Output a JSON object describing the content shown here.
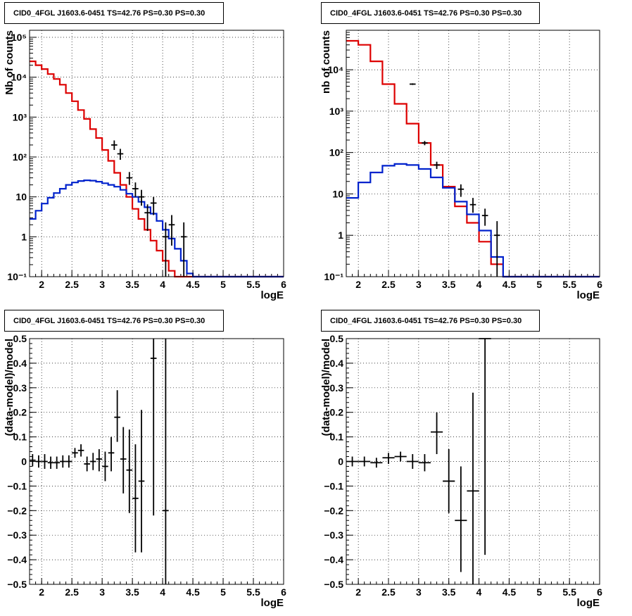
{
  "chart_data": [
    {
      "type": "line",
      "panel": "top-left",
      "title": "CID0_4FGL J1603.6-0451 TS=42.76 PS=0.30 PS=0.30",
      "xlabel": "logE",
      "ylabel": "Nb of counts",
      "xlim": [
        1.8,
        6.0
      ],
      "ylim": [
        0.1,
        150000
      ],
      "yscale": "log",
      "xticks": [
        "2",
        "2.5",
        "3",
        "3.5",
        "4",
        "4.5",
        "5",
        "5.5",
        "6"
      ],
      "yticks": [
        {
          "v": 0.1,
          "t": "10⁻¹"
        },
        {
          "v": 1,
          "t": "1"
        },
        {
          "v": 10,
          "t": "10"
        },
        {
          "v": 100,
          "t": "10²"
        },
        {
          "v": 1000,
          "t": "10³"
        },
        {
          "v": 10000,
          "t": "10⁴"
        },
        {
          "v": 100000,
          "t": "10⁵"
        }
      ],
      "grid": true,
      "bin_edges": [
        1.8,
        1.9,
        2.0,
        2.1,
        2.2,
        2.3,
        2.4,
        2.5,
        2.6,
        2.7,
        2.8,
        2.9,
        3.0,
        3.1,
        3.2,
        3.3,
        3.4,
        3.5,
        3.6,
        3.7,
        3.8,
        3.9,
        4.0,
        4.1,
        4.2,
        4.3,
        4.4,
        4.5,
        4.6,
        4.7,
        4.8,
        4.9,
        5.0,
        5.1,
        5.2,
        5.3,
        5.4,
        5.5,
        5.6,
        5.7,
        5.8,
        5.9,
        6.0
      ],
      "series": [
        {
          "color": "#dd0000",
          "values": [
            25000,
            20000,
            16000,
            12000,
            9000,
            6500,
            4000,
            2500,
            1500,
            900,
            500,
            300,
            150,
            80,
            40,
            20,
            10,
            5,
            2.8,
            1.5,
            0.8,
            0.45,
            0.25,
            0.14,
            0.1,
            0.1,
            0.1,
            0.1,
            0.1,
            0.1,
            0.1,
            0.1,
            0.1,
            0.1,
            0.1,
            0.1,
            0.1,
            0.1,
            0.1,
            0.1,
            0.1,
            0.1
          ]
        },
        {
          "color": "#0022cc",
          "values": [
            2.8,
            4.5,
            6.8,
            9.5,
            12.5,
            16,
            20,
            23,
            25,
            26,
            25.5,
            24,
            22,
            20,
            18,
            15,
            12,
            10,
            7.5,
            5.5,
            3.8,
            2.5,
            1.5,
            0.9,
            0.5,
            0.25,
            0.12,
            0.1,
            0.1,
            0.1,
            0.1,
            0.1,
            0.1,
            0.1,
            0.1,
            0.1,
            0.1,
            0.1,
            0.1,
            0.1,
            0.1,
            0.1
          ]
        }
      ],
      "points": [
        {
          "x": 3.2,
          "y": 200,
          "ylo": 150,
          "yhi": 260
        },
        {
          "x": 3.3,
          "y": 120,
          "ylo": 85,
          "yhi": 160
        },
        {
          "x": 3.45,
          "y": 30,
          "ylo": 20,
          "yhi": 42
        },
        {
          "x": 3.55,
          "y": 16,
          "ylo": 10,
          "yhi": 23
        },
        {
          "x": 3.65,
          "y": 10,
          "ylo": 6,
          "yhi": 15
        },
        {
          "x": 3.75,
          "y": 4,
          "ylo": 1.4,
          "yhi": 6.5
        },
        {
          "x": 3.85,
          "y": 7,
          "ylo": 3.5,
          "yhi": 10
        },
        {
          "x": 4.05,
          "y": 1,
          "ylo": 0.1,
          "yhi": 2.3
        },
        {
          "x": 4.15,
          "y": 2,
          "ylo": 0.6,
          "yhi": 3.5
        },
        {
          "x": 4.35,
          "y": 1,
          "ylo": 0.1,
          "yhi": 2.3
        }
      ]
    },
    {
      "type": "line",
      "panel": "top-right",
      "title": "CID0_4FGL J1603.6-0451 TS=42.76 PS=0.30 PS=0.30",
      "xlabel": "logE",
      "ylabel": "nb of counts",
      "xlim": [
        1.8,
        6.0
      ],
      "ylim": [
        0.1,
        90000
      ],
      "yscale": "log",
      "xticks": [
        "2",
        "2.5",
        "3",
        "3.5",
        "4",
        "4.5",
        "5",
        "5.5",
        "6"
      ],
      "yticks": [
        {
          "v": 0.1,
          "t": "10⁻¹"
        },
        {
          "v": 1,
          "t": "1"
        },
        {
          "v": 10,
          "t": "10"
        },
        {
          "v": 100,
          "t": "10²"
        },
        {
          "v": 1000,
          "t": "10³"
        },
        {
          "v": 10000,
          "t": "10⁴"
        }
      ],
      "grid": true,
      "bin_edges": [
        1.8,
        2.0,
        2.2,
        2.4,
        2.6,
        2.8,
        3.0,
        3.2,
        3.4,
        3.6,
        3.8,
        4.0,
        4.2,
        4.4,
        4.6,
        4.8,
        5.0,
        5.2,
        5.4,
        5.6,
        5.8,
        6.0
      ],
      "series": [
        {
          "color": "#dd0000",
          "values": [
            50000,
            40000,
            16000,
            4500,
            1500,
            500,
            170,
            50,
            15,
            5,
            2,
            0.7,
            0.2,
            0.1,
            0.1,
            0.1,
            0.1,
            0.1,
            0.1,
            0.1,
            0.1
          ]
        },
        {
          "color": "#0022cc",
          "values": [
            8,
            19,
            33,
            48,
            53,
            50,
            40,
            25,
            14,
            6.5,
            3.2,
            1.3,
            0.3,
            0.1,
            0.1,
            0.1,
            0.1,
            0.1,
            0.1,
            0.1,
            0.1
          ]
        }
      ],
      "points": [
        {
          "x": 2.9,
          "y": 4500,
          "ylo": 4300,
          "yhi": 4700
        },
        {
          "x": 3.1,
          "y": 170,
          "ylo": 150,
          "yhi": 190
        },
        {
          "x": 3.3,
          "y": 50,
          "ylo": 40,
          "yhi": 60
        },
        {
          "x": 3.7,
          "y": 13,
          "ylo": 8.5,
          "yhi": 17
        },
        {
          "x": 3.9,
          "y": 5.5,
          "ylo": 3.5,
          "yhi": 8
        },
        {
          "x": 4.1,
          "y": 3,
          "ylo": 1.7,
          "yhi": 4.4
        },
        {
          "x": 4.3,
          "y": 1,
          "ylo": 0.1,
          "yhi": 2.2
        }
      ]
    },
    {
      "type": "scatter",
      "panel": "bottom-left",
      "title": "CID0_4FGL J1603.6-0451 TS=42.76 PS=0.30 PS=0.30",
      "xlabel": "logE",
      "ylabel": "(data-model)/model",
      "xlim": [
        1.8,
        6.0
      ],
      "ylim": [
        -0.5,
        0.5
      ],
      "yscale": "linear",
      "xticks": [
        "2",
        "2.5",
        "3",
        "3.5",
        "4",
        "4.5",
        "5",
        "5.5",
        "6"
      ],
      "yticks": [
        {
          "v": -0.5,
          "t": "−0.5"
        },
        {
          "v": -0.4,
          "t": "−0.4"
        },
        {
          "v": -0.3,
          "t": "−0.3"
        },
        {
          "v": -0.2,
          "t": "−0.2"
        },
        {
          "v": -0.1,
          "t": "−0.1"
        },
        {
          "v": 0,
          "t": "0"
        },
        {
          "v": 0.1,
          "t": "0.1"
        },
        {
          "v": 0.2,
          "t": "0.2"
        },
        {
          "v": 0.3,
          "t": "0.3"
        },
        {
          "v": 0.4,
          "t": "0.4"
        },
        {
          "v": 0.5,
          "t": "0.5"
        }
      ],
      "grid": true,
      "points": [
        {
          "x": 1.85,
          "y": 0.005,
          "ylo": -0.02,
          "yhi": 0.03,
          "w": 0.05
        },
        {
          "x": 1.95,
          "y": 0.0,
          "ylo": -0.025,
          "yhi": 0.025,
          "w": 0.05
        },
        {
          "x": 2.05,
          "y": 0.0,
          "ylo": -0.03,
          "yhi": 0.03,
          "w": 0.05
        },
        {
          "x": 2.15,
          "y": -0.005,
          "ylo": -0.03,
          "yhi": 0.02,
          "w": 0.05
        },
        {
          "x": 2.25,
          "y": -0.005,
          "ylo": -0.03,
          "yhi": 0.02,
          "w": 0.05
        },
        {
          "x": 2.35,
          "y": 0.0,
          "ylo": -0.025,
          "yhi": 0.025,
          "w": 0.05
        },
        {
          "x": 2.45,
          "y": 0.0,
          "ylo": -0.025,
          "yhi": 0.025,
          "w": 0.05
        },
        {
          "x": 2.55,
          "y": 0.035,
          "ylo": 0.015,
          "yhi": 0.055,
          "w": 0.05
        },
        {
          "x": 2.65,
          "y": 0.045,
          "ylo": 0.02,
          "yhi": 0.07,
          "w": 0.05
        },
        {
          "x": 2.75,
          "y": -0.01,
          "ylo": -0.04,
          "yhi": 0.02,
          "w": 0.05
        },
        {
          "x": 2.85,
          "y": 0.0,
          "ylo": -0.035,
          "yhi": 0.035,
          "w": 0.05
        },
        {
          "x": 2.95,
          "y": 0.01,
          "ylo": -0.04,
          "yhi": 0.05,
          "w": 0.05
        },
        {
          "x": 3.05,
          "y": -0.02,
          "ylo": -0.08,
          "yhi": 0.04,
          "w": 0.05
        },
        {
          "x": 3.15,
          "y": 0.035,
          "ylo": -0.04,
          "yhi": 0.1,
          "w": 0.05
        },
        {
          "x": 3.25,
          "y": 0.18,
          "ylo": 0.08,
          "yhi": 0.29,
          "w": 0.05
        },
        {
          "x": 3.35,
          "y": 0.01,
          "ylo": -0.13,
          "yhi": 0.14,
          "w": 0.05
        },
        {
          "x": 3.45,
          "y": -0.035,
          "ylo": -0.21,
          "yhi": 0.13,
          "w": 0.05
        },
        {
          "x": 3.55,
          "y": -0.15,
          "ylo": -0.37,
          "yhi": 0.07,
          "w": 0.05
        },
        {
          "x": 3.65,
          "y": -0.08,
          "ylo": -0.37,
          "yhi": 0.21,
          "w": 0.05
        },
        {
          "x": 3.85,
          "y": 0.42,
          "ylo": -0.22,
          "yhi": 0.5,
          "w": 0.05
        },
        {
          "x": 4.05,
          "y": -0.2,
          "ylo": -0.5,
          "yhi": 0.5,
          "w": 0.05
        }
      ]
    },
    {
      "type": "scatter",
      "panel": "bottom-right",
      "title": "CID0_4FGL J1603.6-0451 TS=42.76 PS=0.30 PS=0.30",
      "xlabel": "logE",
      "ylabel": "(data-model)/model",
      "xlim": [
        1.8,
        6.0
      ],
      "ylim": [
        -0.5,
        0.5
      ],
      "yscale": "linear",
      "xticks": [
        "2",
        "2.5",
        "3",
        "3.5",
        "4",
        "4.5",
        "5",
        "5.5",
        "6"
      ],
      "yticks": [
        {
          "v": -0.5,
          "t": "−0.5"
        },
        {
          "v": -0.4,
          "t": "−0.4"
        },
        {
          "v": -0.3,
          "t": "−0.3"
        },
        {
          "v": -0.2,
          "t": "−0.2"
        },
        {
          "v": -0.1,
          "t": "−0.1"
        },
        {
          "v": 0,
          "t": "0"
        },
        {
          "v": 0.1,
          "t": "0.1"
        },
        {
          "v": 0.2,
          "t": "0.2"
        },
        {
          "v": 0.3,
          "t": "0.3"
        },
        {
          "v": 0.4,
          "t": "0.4"
        },
        {
          "v": 0.5,
          "t": "0.5"
        }
      ],
      "grid": true,
      "points": [
        {
          "x": 1.9,
          "y": 0.0,
          "ylo": -0.02,
          "yhi": 0.02,
          "w": 0.1
        },
        {
          "x": 2.1,
          "y": 0.0,
          "ylo": -0.02,
          "yhi": 0.02,
          "w": 0.1
        },
        {
          "x": 2.3,
          "y": -0.005,
          "ylo": -0.025,
          "yhi": 0.015,
          "w": 0.1
        },
        {
          "x": 2.5,
          "y": 0.015,
          "ylo": -0.01,
          "yhi": 0.035,
          "w": 0.1
        },
        {
          "x": 2.7,
          "y": 0.02,
          "ylo": 0.0,
          "yhi": 0.04,
          "w": 0.1
        },
        {
          "x": 2.9,
          "y": 0.0,
          "ylo": -0.03,
          "yhi": 0.03,
          "w": 0.1
        },
        {
          "x": 3.1,
          "y": -0.005,
          "ylo": -0.04,
          "yhi": 0.03,
          "w": 0.1
        },
        {
          "x": 3.3,
          "y": 0.12,
          "ylo": 0.03,
          "yhi": 0.2,
          "w": 0.1
        },
        {
          "x": 3.5,
          "y": -0.08,
          "ylo": -0.21,
          "yhi": 0.05,
          "w": 0.1
        },
        {
          "x": 3.7,
          "y": -0.24,
          "ylo": -0.45,
          "yhi": -0.02,
          "w": 0.1
        },
        {
          "x": 3.9,
          "y": -0.12,
          "ylo": -0.5,
          "yhi": 0.28,
          "w": 0.1
        },
        {
          "x": 4.1,
          "y": 0.5,
          "ylo": -0.38,
          "yhi": 0.5,
          "w": 0.1
        }
      ]
    }
  ]
}
